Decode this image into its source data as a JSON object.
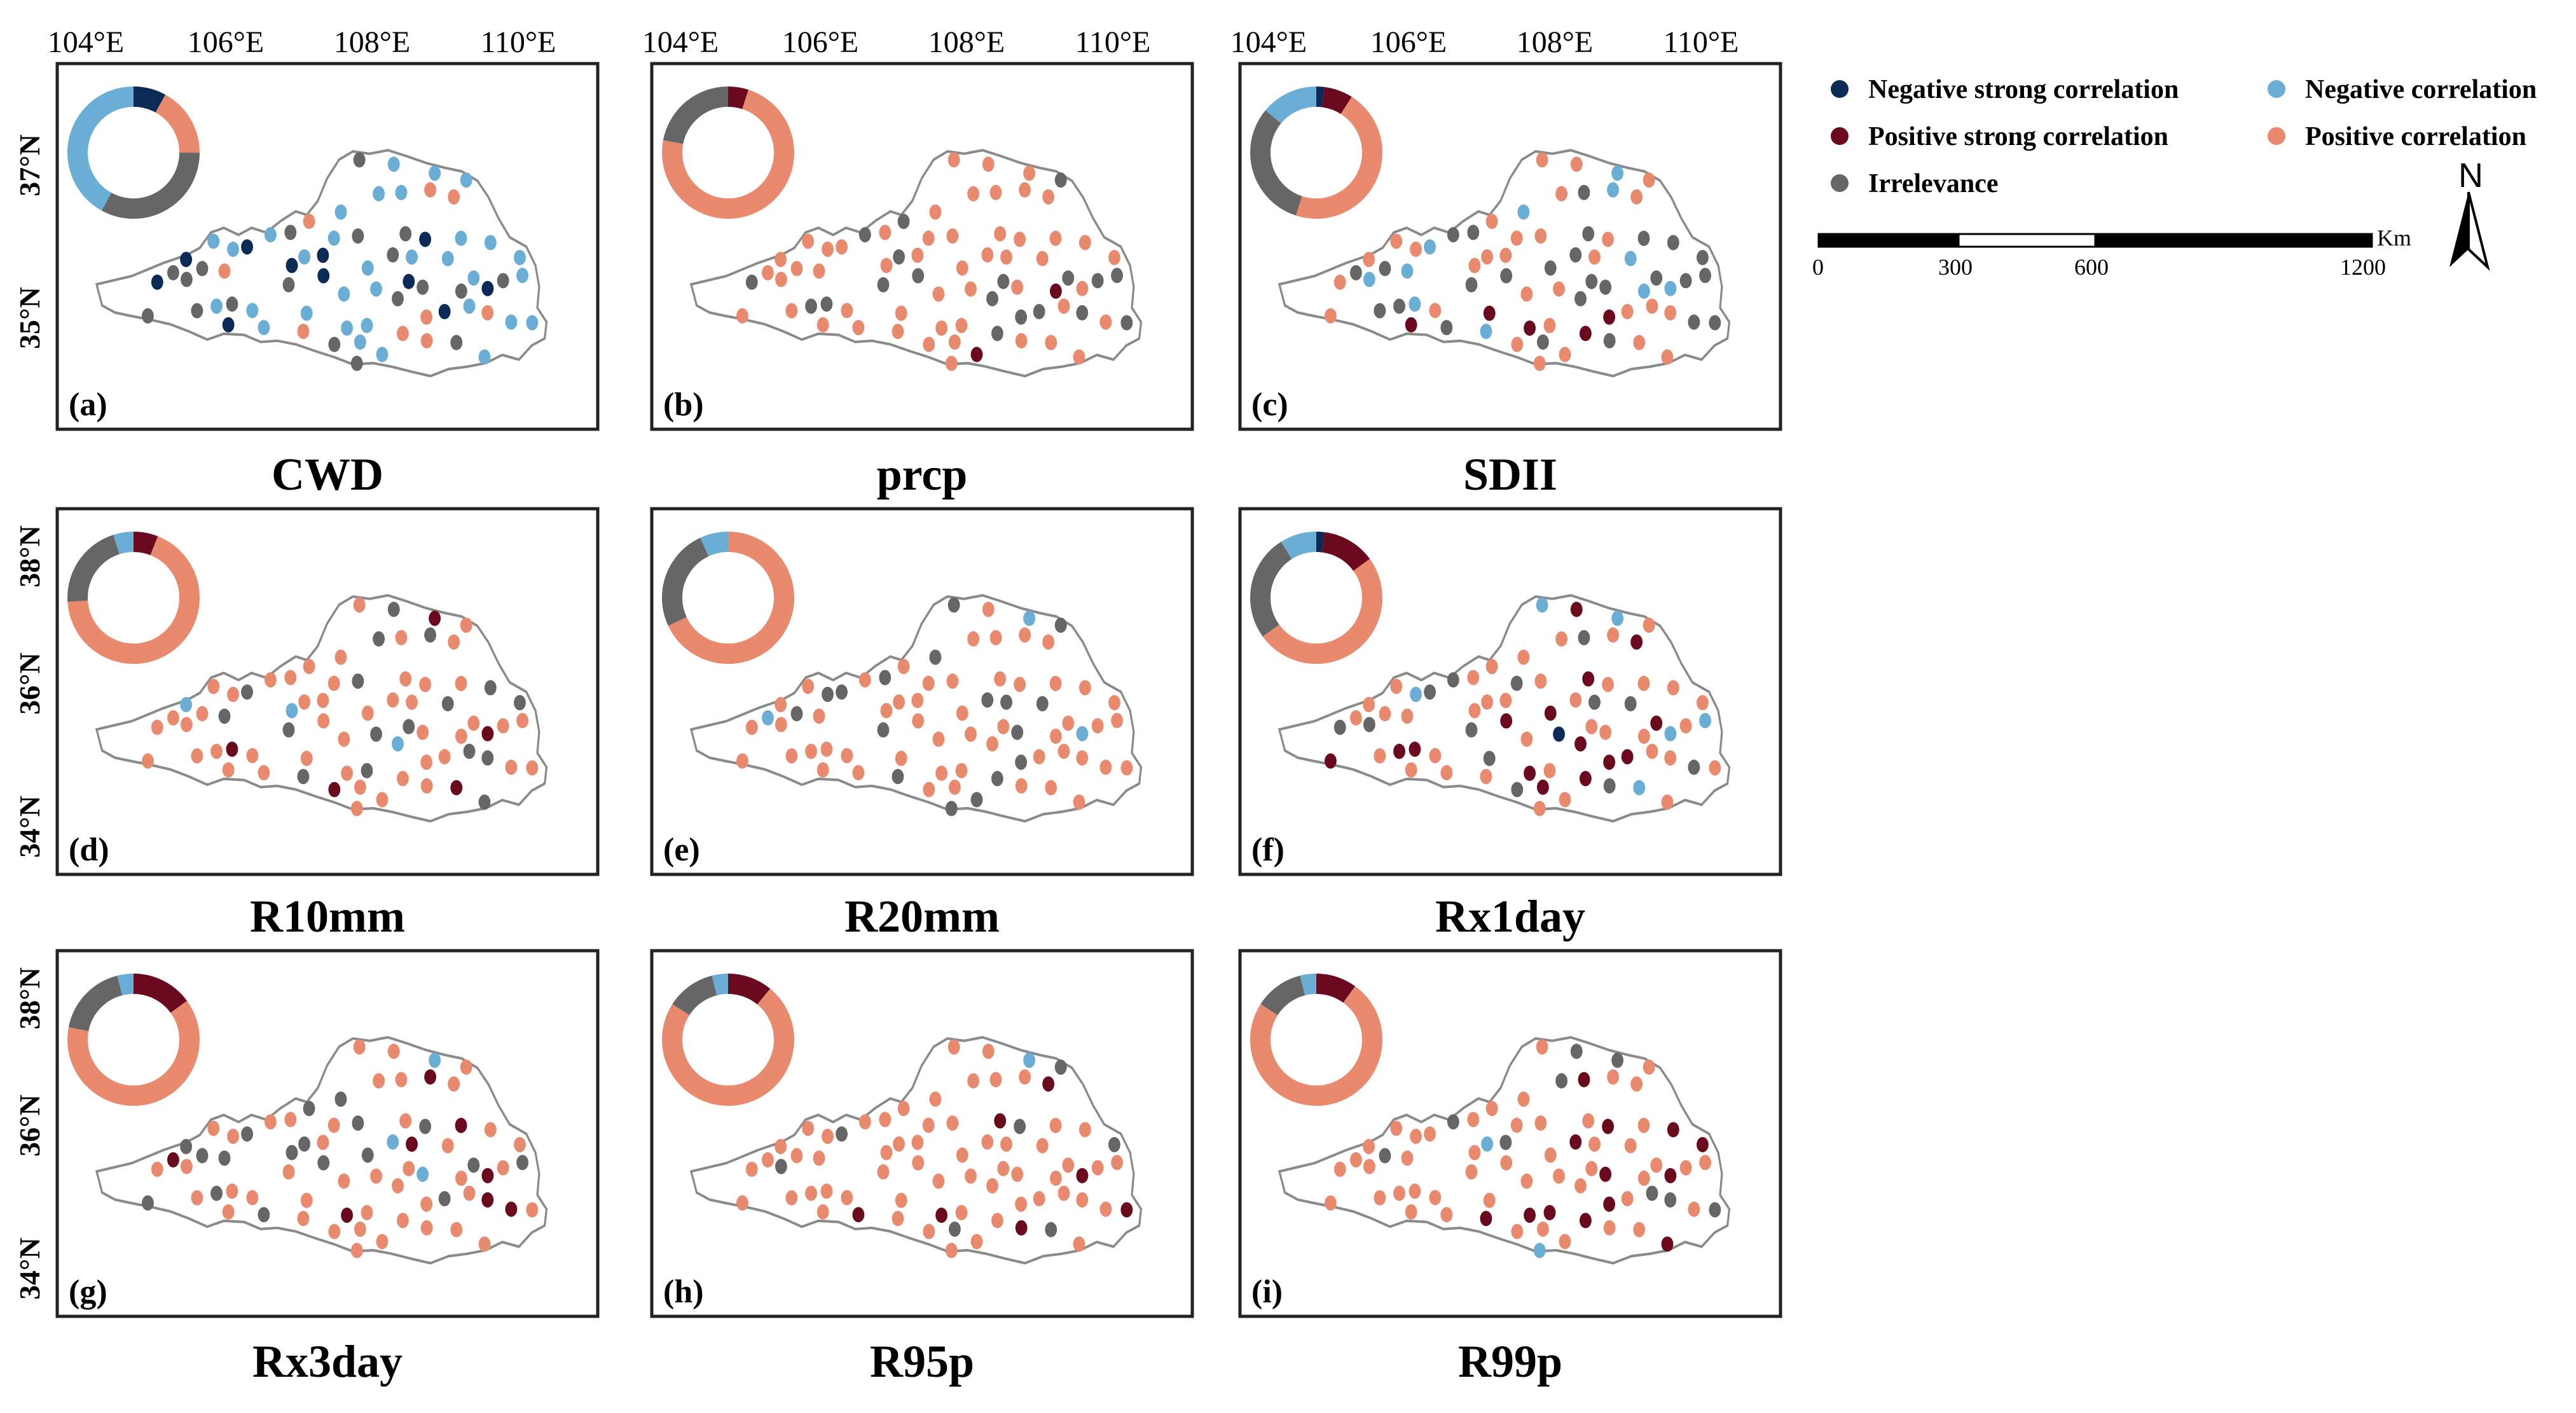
{
  "colors": {
    "neg_strong": "#0b2a56",
    "neg": "#6aaed6",
    "pos_strong": "#6b0a1e",
    "pos": "#e98a6f",
    "irr": "#666666",
    "frame": "#222222",
    "outline": "#8a8a8a"
  },
  "legend": {
    "neg_strong": "Negative strong correlation",
    "pos_strong": "Positive strong correlation",
    "irr": "Irrelevance",
    "neg": "Negative correlation",
    "pos": "Positive correlation"
  },
  "scalebar": {
    "unit": "Km",
    "t0": "0",
    "t1": "300",
    "t2": "600",
    "t3": "1200"
  },
  "north_label": "N",
  "lon_labels": [
    "104°E",
    "106°E",
    "108°E",
    "110°E"
  ],
  "lat_labels_top": [
    "37°N",
    "35°N"
  ],
  "lat_labels_mid": [
    "38°N",
    "36°N",
    "34°N"
  ],
  "lat_labels_bottom": [
    "38°N",
    "36°N",
    "34°N"
  ],
  "panels": [
    {
      "id": "a",
      "label": "(a)",
      "title": "CWD",
      "donut": {
        "neg_strong": 0.08,
        "neg": 0.42,
        "pos_strong": 0.0,
        "pos": 0.17,
        "irr": 0.33
      }
    },
    {
      "id": "b",
      "label": "(b)",
      "title": "prcp",
      "donut": {
        "neg_strong": 0.0,
        "neg": 0.0,
        "pos_strong": 0.05,
        "pos": 0.73,
        "irr": 0.22
      }
    },
    {
      "id": "c",
      "label": "(c)",
      "title": "SDII",
      "donut": {
        "neg_strong": 0.02,
        "neg": 0.14,
        "pos_strong": 0.07,
        "pos": 0.46,
        "irr": 0.31
      }
    },
    {
      "id": "d",
      "label": "(d)",
      "title": "R10mm",
      "donut": {
        "neg_strong": 0.0,
        "neg": 0.05,
        "pos_strong": 0.06,
        "pos": 0.68,
        "irr": 0.21
      }
    },
    {
      "id": "e",
      "label": "(e)",
      "title": "R20mm",
      "donut": {
        "neg_strong": 0.0,
        "neg": 0.07,
        "pos_strong": 0.0,
        "pos": 0.68,
        "irr": 0.25
      }
    },
    {
      "id": "f",
      "label": "(f)",
      "title": "Rx1day",
      "donut": {
        "neg_strong": 0.02,
        "neg": 0.09,
        "pos_strong": 0.13,
        "pos": 0.5,
        "irr": 0.26
      }
    },
    {
      "id": "g",
      "label": "(g)",
      "title": "Rx3day",
      "donut": {
        "neg_strong": 0.0,
        "neg": 0.04,
        "pos_strong": 0.15,
        "pos": 0.63,
        "irr": 0.18
      }
    },
    {
      "id": "h",
      "label": "(h)",
      "title": "R95p",
      "donut": {
        "neg_strong": 0.0,
        "neg": 0.04,
        "pos_strong": 0.11,
        "pos": 0.73,
        "irr": 0.12
      }
    },
    {
      "id": "i",
      "label": "(i)",
      "title": "R99p",
      "donut": {
        "neg_strong": 0.0,
        "neg": 0.04,
        "pos_strong": 0.1,
        "pos": 0.74,
        "irr": 0.12
      }
    }
  ]
}
